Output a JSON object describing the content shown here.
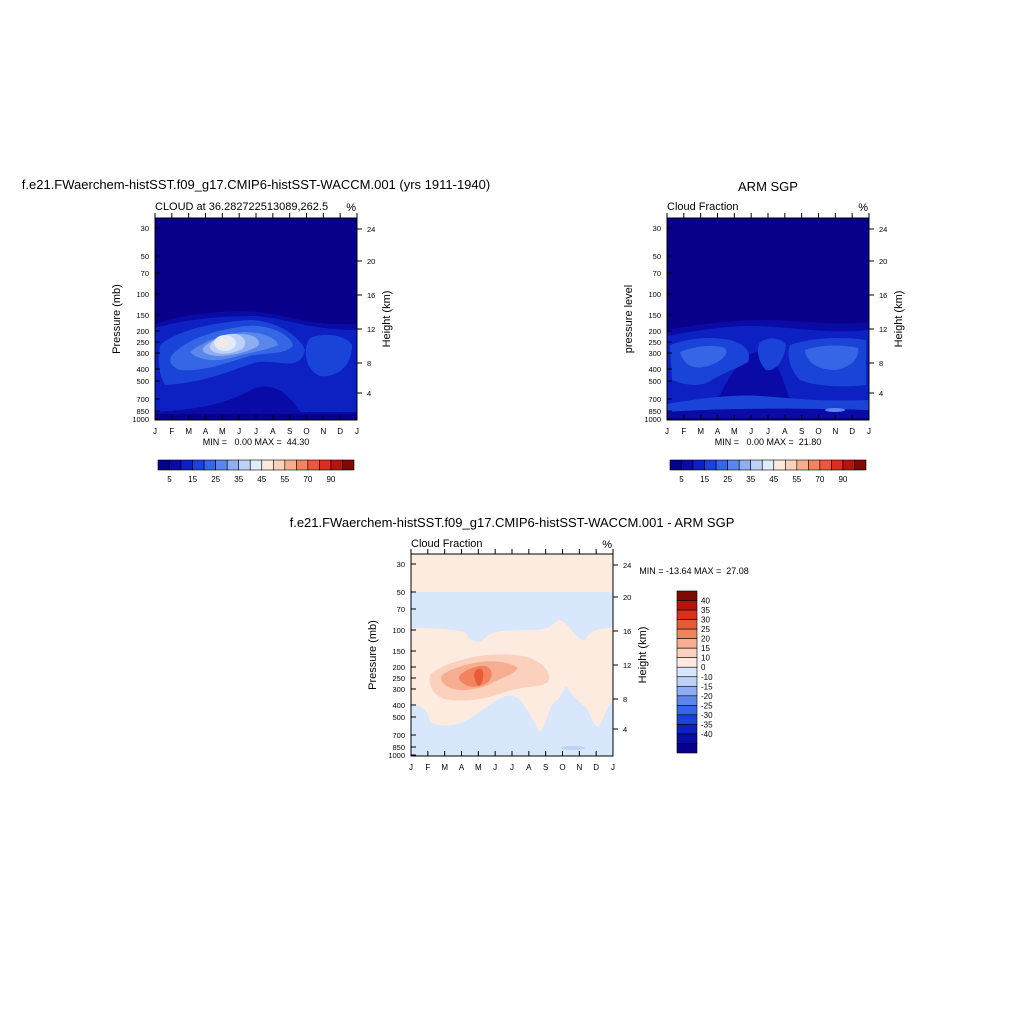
{
  "colorbar_abs": {
    "colors": [
      "#08008a",
      "#0a0aa6",
      "#0d21c2",
      "#1a44d8",
      "#3566e6",
      "#5b86ec",
      "#8eadf2",
      "#bed1f6",
      "#e0ebfb",
      "#fde9dc",
      "#fbd0bd",
      "#f7ae90",
      "#f2835f",
      "#e95a36",
      "#d83119",
      "#b3170c",
      "#7d0a04"
    ],
    "labels": [
      "5",
      "15",
      "25",
      "35",
      "45",
      "55",
      "70",
      "90"
    ]
  },
  "colorbar_diff": {
    "colors": [
      "#08008a",
      "#0a0aa6",
      "#0d21c2",
      "#1a44d8",
      "#3566e6",
      "#5b86ec",
      "#8eadf2",
      "#bed1f6",
      "#d8e7fb",
      "#fdebdf",
      "#fbd0bd",
      "#f7ae90",
      "#f2835f",
      "#e95a36",
      "#d83119",
      "#b3170c",
      "#7d0a04"
    ],
    "labels": [
      "40",
      "35",
      "30",
      "25",
      "20",
      "15",
      "10",
      "0",
      "-10",
      "-15",
      "-20",
      "-25",
      "-30",
      "-35",
      "-40"
    ]
  },
  "chart_data": [
    {
      "type": "heatmap",
      "title": "f.e21.FWaerchem-histSST.f09_g17.CMIP6-histSST-WACCM.001 (yrs 1911-1940)",
      "subtitle_left": "CLOUD at 36.282722513089,262.5",
      "subtitle_right": "%",
      "xlabel": "",
      "ylabel": "Pressure (mb)",
      "ylabel_right": "Height (km)",
      "x_ticks": [
        "J",
        "F",
        "M",
        "A",
        "M",
        "J",
        "J",
        "A",
        "S",
        "O",
        "N",
        "D",
        "J"
      ],
      "y_ticks": [
        "30",
        "50",
        "70",
        "100",
        "150",
        "200",
        "250",
        "300",
        "400",
        "500",
        "700",
        "850",
        "1000"
      ],
      "y_ticks_right": [
        "24",
        "20",
        "16",
        "12",
        "8",
        "4"
      ],
      "footer": "MIN =   0.00 MAX =  44.30",
      "min": 0.0,
      "max": 44.3
    },
    {
      "type": "heatmap",
      "title": "ARM SGP",
      "subtitle_left": "Cloud Fraction",
      "subtitle_right": "%",
      "xlabel": "",
      "ylabel": "pressure level",
      "ylabel_right": "Height (km)",
      "x_ticks": [
        "J",
        "F",
        "M",
        "A",
        "M",
        "J",
        "J",
        "A",
        "S",
        "O",
        "N",
        "D",
        "J"
      ],
      "y_ticks": [
        "30",
        "50",
        "70",
        "100",
        "150",
        "200",
        "250",
        "300",
        "400",
        "500",
        "700",
        "850",
        "1000"
      ],
      "y_ticks_right": [
        "24",
        "20",
        "16",
        "12",
        "8",
        "4"
      ],
      "footer": "MIN =   0.00 MAX =  21.80",
      "min": 0.0,
      "max": 21.8
    },
    {
      "type": "heatmap",
      "title": "f.e21.FWaerchem-histSST.f09_g17.CMIP6-histSST-WACCM.001 - ARM SGP",
      "subtitle_left": "Cloud Fraction",
      "subtitle_right": "%",
      "xlabel": "",
      "ylabel": "Pressure (mb)",
      "ylabel_right": "Height (km)",
      "x_ticks": [
        "J",
        "F",
        "M",
        "A",
        "M",
        "J",
        "J",
        "A",
        "S",
        "O",
        "N",
        "D",
        "J"
      ],
      "y_ticks": [
        "30",
        "50",
        "70",
        "100",
        "150",
        "200",
        "250",
        "300",
        "400",
        "500",
        "700",
        "850",
        "1000"
      ],
      "y_ticks_right": [
        "24",
        "20",
        "16",
        "12",
        "8",
        "4"
      ],
      "footer": "MIN = -13.64 MAX =  27.08",
      "min": -13.64,
      "max": 27.08
    }
  ]
}
